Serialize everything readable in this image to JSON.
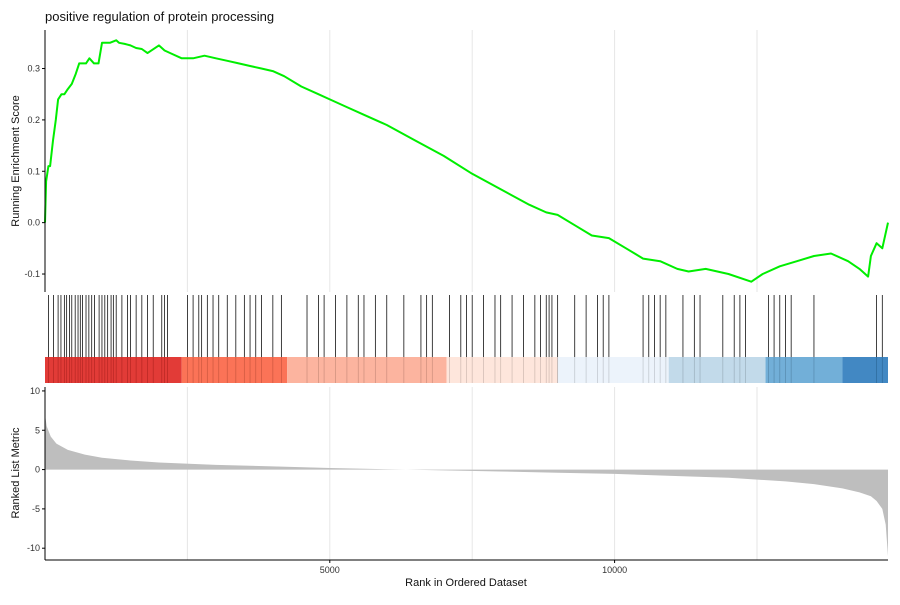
{
  "chart_data": {
    "type": "line",
    "title": "positive regulation of protein processing",
    "xlabel": "Rank in Ordered Dataset",
    "xlim": [
      0,
      14800
    ],
    "x_ticks": [
      5000,
      10000
    ],
    "x_tick_labels": [
      "5000",
      "10000"
    ],
    "x_grid": [
      2500,
      5000,
      7500,
      10000,
      12500
    ],
    "colors": {
      "es_line": "#00ee00",
      "hit_line": "#111111",
      "metric_fill": "#bebebe",
      "grid": "#e6e6e6",
      "axis": "#000000"
    },
    "es_panel": {
      "ylabel": "Running Enrichment Score",
      "ylim": [
        -0.135,
        0.375
      ],
      "y_ticks": [
        -0.1,
        0.0,
        0.1,
        0.2,
        0.3
      ],
      "y_tick_labels": [
        "-0.1",
        "0.0",
        "0.1",
        "0.2",
        "0.3"
      ],
      "series": [
        {
          "x": [
            0,
            20,
            60,
            90,
            140,
            190,
            230,
            290,
            340,
            400,
            470,
            540,
            600,
            660,
            720,
            780,
            860,
            940,
            1000,
            1060,
            1100,
            1140,
            1250,
            1300,
            1400,
            1500,
            1600,
            1700,
            1800,
            2000,
            2100,
            2200,
            2400,
            2600,
            2800,
            3000,
            3200,
            3400,
            3600,
            3800,
            4000,
            4200,
            4500,
            4800,
            5000,
            5300,
            5600,
            6000,
            6500,
            7000,
            7500,
            8000,
            8500,
            8800,
            9000,
            9300,
            9600,
            9900,
            10200,
            10500,
            10800,
            11100,
            11300,
            11600,
            12000,
            12400,
            12600,
            12900,
            13200,
            13500,
            13800,
            14100,
            14300,
            14450,
            14500,
            14600,
            14700,
            14800
          ],
          "values": [
            0.0,
            0.08,
            0.11,
            0.11,
            0.16,
            0.2,
            0.24,
            0.25,
            0.25,
            0.26,
            0.27,
            0.29,
            0.31,
            0.31,
            0.31,
            0.32,
            0.31,
            0.31,
            0.35,
            0.35,
            0.35,
            0.35,
            0.355,
            0.35,
            0.348,
            0.345,
            0.34,
            0.338,
            0.33,
            0.345,
            0.335,
            0.33,
            0.32,
            0.32,
            0.325,
            0.32,
            0.315,
            0.31,
            0.305,
            0.3,
            0.295,
            0.285,
            0.265,
            0.25,
            0.24,
            0.225,
            0.21,
            0.19,
            0.16,
            0.13,
            0.095,
            0.065,
            0.035,
            0.02,
            0.015,
            -0.005,
            -0.025,
            -0.03,
            -0.05,
            -0.07,
            -0.075,
            -0.09,
            -0.095,
            -0.09,
            -0.1,
            -0.115,
            -0.1,
            -0.085,
            -0.075,
            -0.065,
            -0.06,
            -0.075,
            -0.09,
            -0.105,
            -0.065,
            -0.04,
            -0.05,
            0.0
          ]
        }
      ]
    },
    "hit_positions": [
      60,
      150,
      230,
      280,
      340,
      380,
      430,
      470,
      530,
      580,
      620,
      660,
      720,
      770,
      820,
      870,
      950,
      1000,
      1050,
      1100,
      1160,
      1200,
      1250,
      1350,
      1450,
      1500,
      1600,
      1700,
      1800,
      1900,
      2050,
      2100,
      2150,
      2500,
      2600,
      2700,
      2750,
      2850,
      2950,
      3050,
      3200,
      3350,
      3500,
      3600,
      3700,
      3800,
      4000,
      4150,
      4600,
      4800,
      4900,
      5100,
      5300,
      5500,
      5600,
      5800,
      6000,
      6300,
      6600,
      6700,
      6800,
      7100,
      7300,
      7400,
      7500,
      7700,
      7900,
      8000,
      8200,
      8400,
      8600,
      8700,
      8800,
      8850,
      8900,
      9000,
      9300,
      9500,
      9700,
      9800,
      9900,
      10500,
      10600,
      10700,
      10800,
      10900,
      11200,
      11400,
      11500,
      11900,
      12100,
      12200,
      12300,
      12700,
      12800,
      12900,
      13000,
      13100,
      13500,
      14600,
      14700
    ],
    "color_bar": {
      "bins": [
        {
          "x0": 0,
          "x1": 2400,
          "color": "#e0302c"
        },
        {
          "x0": 2400,
          "x1": 4250,
          "color": "#fb6b4e"
        },
        {
          "x0": 4250,
          "x1": 7050,
          "color": "#fcb09a"
        },
        {
          "x0": 7050,
          "x1": 9000,
          "color": "#fee5da"
        },
        {
          "x0": 9000,
          "x1": 10950,
          "color": "#ebf2fb"
        },
        {
          "x0": 10950,
          "x1": 12650,
          "color": "#bfd8e9"
        },
        {
          "x0": 12650,
          "x1": 14000,
          "color": "#6aabd6"
        },
        {
          "x0": 14000,
          "x1": 14800,
          "color": "#3882c0"
        }
      ]
    },
    "metric_panel": {
      "ylabel": "Ranked List Metric",
      "ylim": [
        -11.5,
        10.5
      ],
      "y_ticks": [
        -10,
        -5,
        0,
        5,
        10
      ],
      "y_tick_labels": [
        "-10",
        "-5",
        "0",
        "5",
        "10"
      ],
      "series": [
        {
          "x": [
            0,
            30,
            100,
            200,
            400,
            700,
            1000,
            1500,
            2000,
            3000,
            4000,
            5000,
            6000,
            7000,
            8000,
            9000,
            10000,
            11000,
            12000,
            13000,
            13500,
            14000,
            14300,
            14500,
            14600,
            14700,
            14760,
            14800
          ],
          "values": [
            7.0,
            5.5,
            4.2,
            3.3,
            2.5,
            1.9,
            1.5,
            1.15,
            0.9,
            0.6,
            0.4,
            0.2,
            0.05,
            -0.1,
            -0.25,
            -0.4,
            -0.55,
            -0.8,
            -1.05,
            -1.5,
            -1.85,
            -2.4,
            -2.9,
            -3.4,
            -4.0,
            -5.0,
            -7.0,
            -11.0
          ]
        }
      ]
    }
  }
}
